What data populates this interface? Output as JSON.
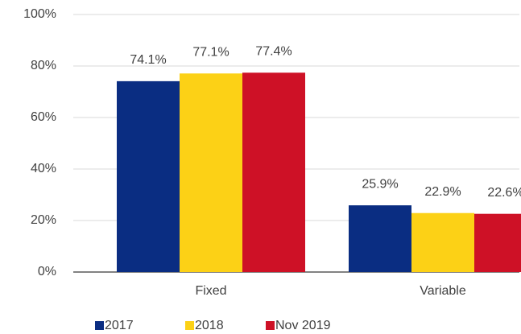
{
  "chart_data": {
    "type": "bar",
    "categories": [
      "Fixed",
      "Variable"
    ],
    "series": [
      {
        "name": "2017",
        "color": "#0a2d82",
        "values": [
          74.1,
          25.9
        ],
        "value_labels": [
          "74.1%",
          "25.9%"
        ]
      },
      {
        "name": "2018",
        "color": "#fcd116",
        "values": [
          77.1,
          22.9
        ],
        "value_labels": [
          "77.1%",
          "22.9%"
        ]
      },
      {
        "name": "Nov 2019",
        "color": "#ce1126",
        "values": [
          77.4,
          22.6
        ],
        "value_labels": [
          "77.4%",
          "22.6%"
        ]
      }
    ],
    "ylim": [
      0,
      100
    ],
    "yticks": [
      {
        "value": 0,
        "label": "0%"
      },
      {
        "value": 20,
        "label": "20%"
      },
      {
        "value": 40,
        "label": "40%"
      },
      {
        "value": 60,
        "label": "60%"
      },
      {
        "value": 80,
        "label": "80%"
      },
      {
        "value": 100,
        "label": "100%"
      }
    ],
    "grid": true,
    "legend": "bottom"
  }
}
